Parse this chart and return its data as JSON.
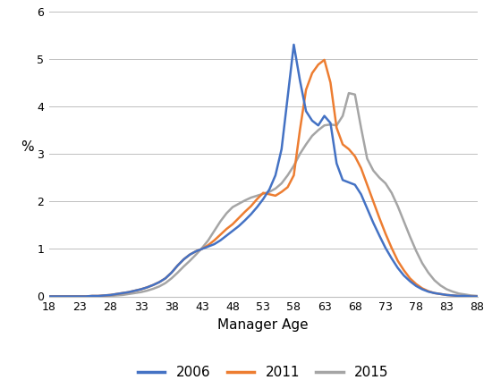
{
  "ages": [
    18,
    19,
    20,
    21,
    22,
    23,
    24,
    25,
    26,
    27,
    28,
    29,
    30,
    31,
    32,
    33,
    34,
    35,
    36,
    37,
    38,
    39,
    40,
    41,
    42,
    43,
    44,
    45,
    46,
    47,
    48,
    49,
    50,
    51,
    52,
    53,
    54,
    55,
    56,
    57,
    58,
    59,
    60,
    61,
    62,
    63,
    64,
    65,
    66,
    67,
    68,
    69,
    70,
    71,
    72,
    73,
    74,
    75,
    76,
    77,
    78,
    79,
    80,
    81,
    82,
    83,
    84,
    85,
    86,
    87,
    88
  ],
  "y2006": [
    0.0,
    0.0,
    0.0,
    0.0,
    0.0,
    0.0,
    0.0,
    0.01,
    0.01,
    0.02,
    0.03,
    0.05,
    0.07,
    0.09,
    0.12,
    0.15,
    0.19,
    0.24,
    0.3,
    0.38,
    0.5,
    0.65,
    0.78,
    0.88,
    0.95,
    1.0,
    1.05,
    1.1,
    1.18,
    1.28,
    1.38,
    1.48,
    1.6,
    1.73,
    1.88,
    2.05,
    2.25,
    2.55,
    3.1,
    4.2,
    5.3,
    4.55,
    3.9,
    3.7,
    3.6,
    3.8,
    3.65,
    2.8,
    2.45,
    2.4,
    2.35,
    2.15,
    1.85,
    1.55,
    1.28,
    1.02,
    0.8,
    0.6,
    0.44,
    0.32,
    0.22,
    0.15,
    0.1,
    0.07,
    0.05,
    0.03,
    0.02,
    0.01,
    0.01,
    0.0,
    0.0
  ],
  "y2011": [
    0.0,
    0.0,
    0.0,
    0.0,
    0.0,
    0.0,
    0.0,
    0.01,
    0.01,
    0.02,
    0.03,
    0.05,
    0.07,
    0.09,
    0.12,
    0.15,
    0.19,
    0.24,
    0.3,
    0.38,
    0.5,
    0.65,
    0.78,
    0.88,
    0.95,
    1.0,
    1.08,
    1.18,
    1.3,
    1.42,
    1.52,
    1.65,
    1.78,
    1.9,
    2.05,
    2.18,
    2.15,
    2.12,
    2.2,
    2.3,
    2.55,
    3.5,
    4.35,
    4.7,
    4.88,
    4.98,
    4.5,
    3.55,
    3.2,
    3.1,
    2.95,
    2.7,
    2.35,
    2.0,
    1.65,
    1.32,
    1.02,
    0.75,
    0.55,
    0.38,
    0.26,
    0.17,
    0.11,
    0.07,
    0.05,
    0.03,
    0.02,
    0.01,
    0.0,
    0.0,
    0.0
  ],
  "y2015": [
    0.0,
    0.0,
    0.0,
    0.0,
    0.0,
    0.0,
    0.0,
    0.0,
    0.0,
    0.01,
    0.01,
    0.02,
    0.03,
    0.05,
    0.07,
    0.09,
    0.12,
    0.16,
    0.21,
    0.28,
    0.38,
    0.5,
    0.63,
    0.75,
    0.88,
    1.02,
    1.18,
    1.38,
    1.58,
    1.75,
    1.88,
    1.95,
    2.02,
    2.08,
    2.12,
    2.16,
    2.2,
    2.27,
    2.38,
    2.55,
    2.75,
    3.0,
    3.2,
    3.38,
    3.5,
    3.6,
    3.62,
    3.6,
    3.8,
    4.28,
    4.25,
    3.55,
    2.9,
    2.65,
    2.5,
    2.38,
    2.18,
    1.9,
    1.58,
    1.26,
    0.96,
    0.7,
    0.5,
    0.34,
    0.23,
    0.15,
    0.1,
    0.06,
    0.04,
    0.02,
    0.01
  ],
  "color_2006": "#4472C4",
  "color_2011": "#ED7D31",
  "color_2015": "#A5A5A5",
  "xlabel": "Manager Age",
  "ylabel": "%",
  "ylim": [
    0,
    6
  ],
  "xlim": [
    18,
    88
  ],
  "yticks": [
    0,
    1,
    2,
    3,
    4,
    5,
    6
  ],
  "xticks": [
    18,
    23,
    28,
    33,
    38,
    43,
    48,
    53,
    58,
    63,
    68,
    73,
    78,
    83,
    88
  ],
  "legend_labels": [
    "2006",
    "2011",
    "2015"
  ],
  "line_width": 1.8
}
